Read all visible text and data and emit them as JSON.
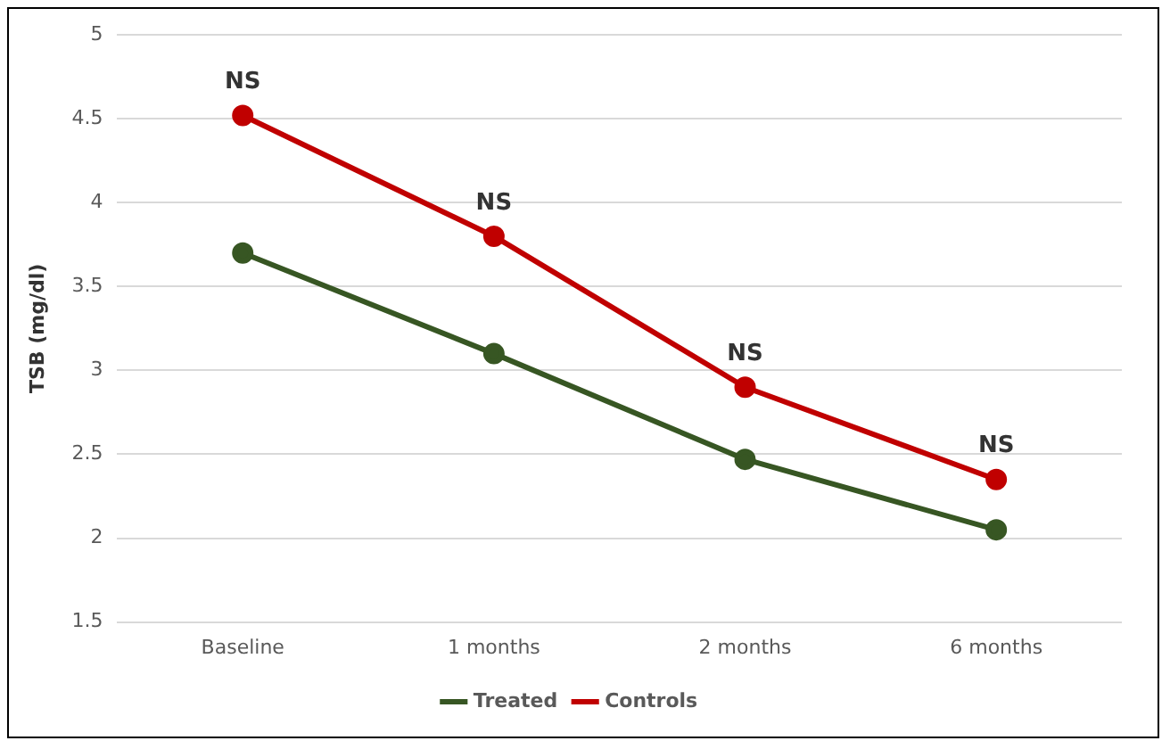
{
  "chart_data": {
    "type": "line",
    "ylabel": "TSB (mg/dl)",
    "categories": [
      "Baseline",
      "1 months",
      "2 months",
      "6 months"
    ],
    "series": [
      {
        "name": "Treated",
        "color": "#375623",
        "values": [
          3.7,
          3.1,
          2.47,
          2.05
        ]
      },
      {
        "name": "Controls",
        "color": "#c00000",
        "values": [
          4.52,
          3.8,
          2.9,
          2.35
        ]
      }
    ],
    "ylim": [
      1.5,
      5
    ],
    "yticks": [
      1.5,
      2,
      2.5,
      3,
      3.5,
      4,
      4.5,
      5
    ],
    "grid": "y",
    "legend": "bottom",
    "marker": "circle",
    "line_style": "solid",
    "annotations": [
      {
        "text": "NS",
        "x": "Baseline",
        "y": 4.52
      },
      {
        "text": "NS",
        "x": "1 months",
        "y": 3.8
      },
      {
        "text": "NS",
        "x": "2 months",
        "y": 2.9
      },
      {
        "text": "NS",
        "x": "6 months",
        "y": 2.35
      }
    ]
  }
}
